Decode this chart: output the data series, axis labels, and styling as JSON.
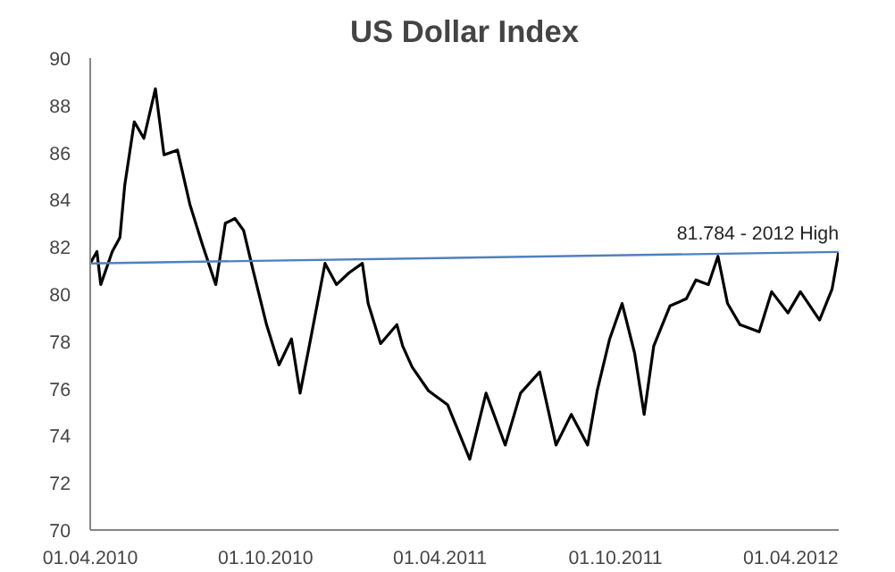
{
  "chart_data": {
    "type": "line",
    "title": "US Dollar Index",
    "ylim": [
      70,
      90
    ],
    "yticks": [
      70,
      72,
      74,
      76,
      78,
      80,
      82,
      84,
      86,
      88,
      90
    ],
    "xlim": [
      "2010-04-01",
      "2012-05-21"
    ],
    "xticks": [
      {
        "value": "2010-04-01",
        "label": "01.04.2010"
      },
      {
        "value": "2010-10-01",
        "label": "01.10.2010"
      },
      {
        "value": "2011-04-01",
        "label": "01.04.2011"
      },
      {
        "value": "2011-10-01",
        "label": "01.10.2011"
      },
      {
        "value": "2012-04-01",
        "label": "01.04.2012"
      }
    ],
    "grid": false,
    "marker": "none",
    "line_style": "solid",
    "series": [
      {
        "color": "#000000",
        "x": [
          "2010-04-01",
          "2010-04-08",
          "2010-04-12",
          "2010-04-24",
          "2010-05-02",
          "2010-05-07",
          "2010-05-17",
          "2010-05-27",
          "2010-06-08",
          "2010-06-17",
          "2010-07-01",
          "2010-07-14",
          "2010-07-27",
          "2010-08-10",
          "2010-08-20",
          "2010-08-30",
          "2010-09-08",
          "2010-09-18",
          "2010-10-02",
          "2010-10-15",
          "2010-10-28",
          "2010-11-06",
          "2010-11-17",
          "2010-12-02",
          "2010-12-14",
          "2010-12-27",
          "2011-01-10",
          "2011-01-16",
          "2011-01-29",
          "2011-02-15",
          "2011-02-21",
          "2011-03-03",
          "2011-03-20",
          "2011-04-09",
          "2011-05-02",
          "2011-05-19",
          "2011-06-08",
          "2011-06-24",
          "2011-07-14",
          "2011-07-31",
          "2011-08-16",
          "2011-09-02",
          "2011-09-12",
          "2011-09-25",
          "2011-10-08",
          "2011-10-21",
          "2011-10-31",
          "2011-11-10",
          "2011-11-27",
          "2011-12-14",
          "2011-12-24",
          "2012-01-06",
          "2012-01-16",
          "2012-01-26",
          "2012-02-08",
          "2012-02-28",
          "2012-03-12",
          "2012-03-29",
          "2012-04-11",
          "2012-05-01",
          "2012-05-14",
          "2012-05-21"
        ],
        "values": [
          81.3,
          81.8,
          80.4,
          81.8,
          82.4,
          84.6,
          87.3,
          86.6,
          88.7,
          85.9,
          86.1,
          83.8,
          82.1,
          80.4,
          83.0,
          83.2,
          82.7,
          81.0,
          78.7,
          77.0,
          78.1,
          75.8,
          78.1,
          81.3,
          80.4,
          80.9,
          81.3,
          79.6,
          77.9,
          78.7,
          77.8,
          76.9,
          75.9,
          75.3,
          73.0,
          75.8,
          73.6,
          75.8,
          76.7,
          73.6,
          74.9,
          73.6,
          75.9,
          78.1,
          79.6,
          77.5,
          74.9,
          77.8,
          79.5,
          79.8,
          80.6,
          80.4,
          81.6,
          79.6,
          78.7,
          78.4,
          80.1,
          79.2,
          80.1,
          78.9,
          80.2,
          81.8
        ]
      },
      {
        "color": "#4f81bd",
        "x": [
          "2010-04-01",
          "2012-05-21"
        ],
        "values": [
          81.3,
          81.784
        ]
      }
    ],
    "annotations": [
      {
        "text": "81.784 - 2012 High",
        "x": "2012-05-21",
        "y": 81.784
      }
    ]
  }
}
